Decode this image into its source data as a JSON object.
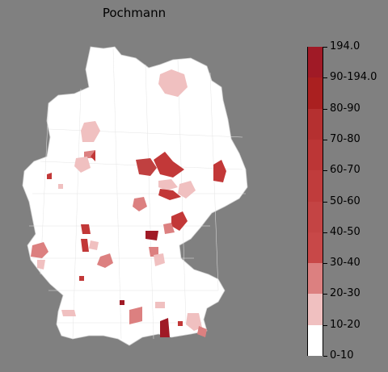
{
  "title": "Pochmann",
  "colorbar": {
    "labels": [
      "0-10",
      "10-20",
      "20-30",
      "30-40",
      "40-50",
      "50-60",
      "60-70",
      "70-80",
      "80-90",
      "90-194.0",
      "194.0"
    ],
    "colors": [
      "#ffffff",
      "#f0c0c0",
      "#dc8080",
      "#c84848",
      "#c44444",
      "#c03c3c",
      "#bc3636",
      "#b53030",
      "#aa2020",
      "#a01a26"
    ]
  },
  "map": {
    "country": "Germany",
    "highlighted_regions_count": 34
  }
}
